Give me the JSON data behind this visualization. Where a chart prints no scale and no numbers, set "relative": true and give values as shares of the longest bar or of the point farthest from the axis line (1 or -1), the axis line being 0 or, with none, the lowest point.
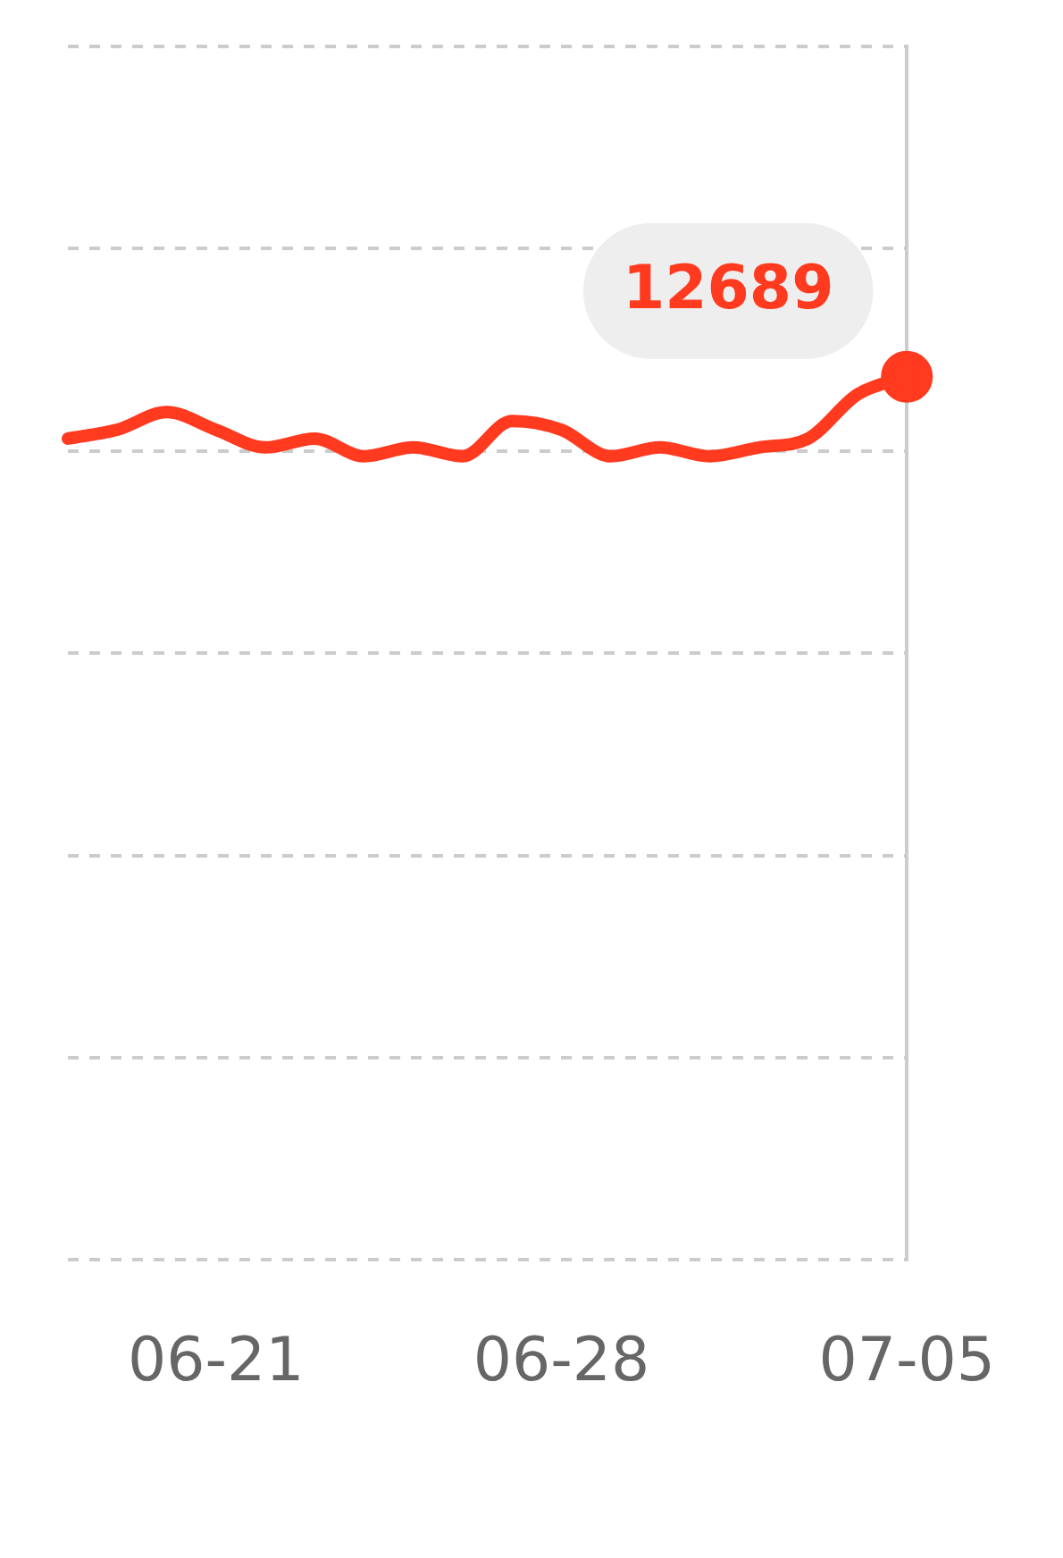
{
  "chart_data": {
    "type": "line",
    "relative": true,
    "categories": [
      null,
      null,
      null,
      "06-21",
      null,
      null,
      null,
      null,
      null,
      null,
      "06-28",
      null,
      null,
      null,
      null,
      null,
      null,
      "07-05"
    ],
    "series": [
      {
        "color": "#ff3a1f",
        "values": [
          0.93,
          0.94,
          0.96,
          0.94,
          0.92,
          0.93,
          0.91,
          0.92,
          0.91,
          0.95,
          0.94,
          0.91,
          0.92,
          0.91,
          0.92,
          0.93,
          0.98,
          1
        ]
      }
    ],
    "annotations": [
      {
        "text": "12689",
        "x": "07-05",
        "y": 1
      }
    ],
    "grid": "y",
    "legend": false,
    "marker": "none",
    "line_style": "solid"
  }
}
